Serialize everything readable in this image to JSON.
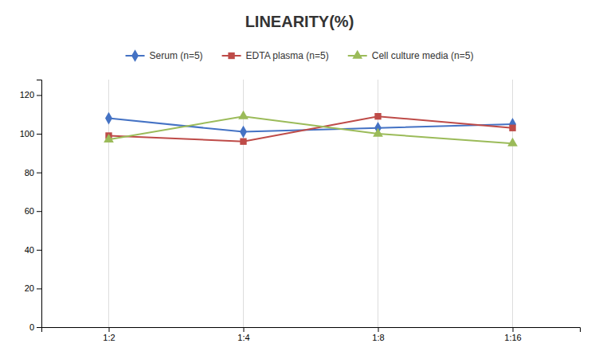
{
  "chart_data": {
    "type": "line",
    "title": "LINEARITY(%)",
    "categories": [
      "1:2",
      "1:4",
      "1:8",
      "1:16"
    ],
    "series": [
      {
        "name": "Serum (n=5)",
        "color": "#4472C4",
        "marker": "diamond",
        "values": [
          108,
          101,
          103,
          105
        ]
      },
      {
        "name": "EDTA plasma (n=5)",
        "color": "#BE4B48",
        "marker": "square",
        "values": [
          99,
          96,
          109,
          103
        ]
      },
      {
        "name": "Cell culture media (n=5)",
        "color": "#9BBB59",
        "marker": "triangle",
        "values": [
          97,
          109,
          100,
          95
        ]
      }
    ],
    "ylim": [
      0,
      128
    ],
    "yticks": [
      0,
      20,
      40,
      60,
      80,
      100,
      120
    ],
    "grid": true,
    "legend": "top"
  }
}
